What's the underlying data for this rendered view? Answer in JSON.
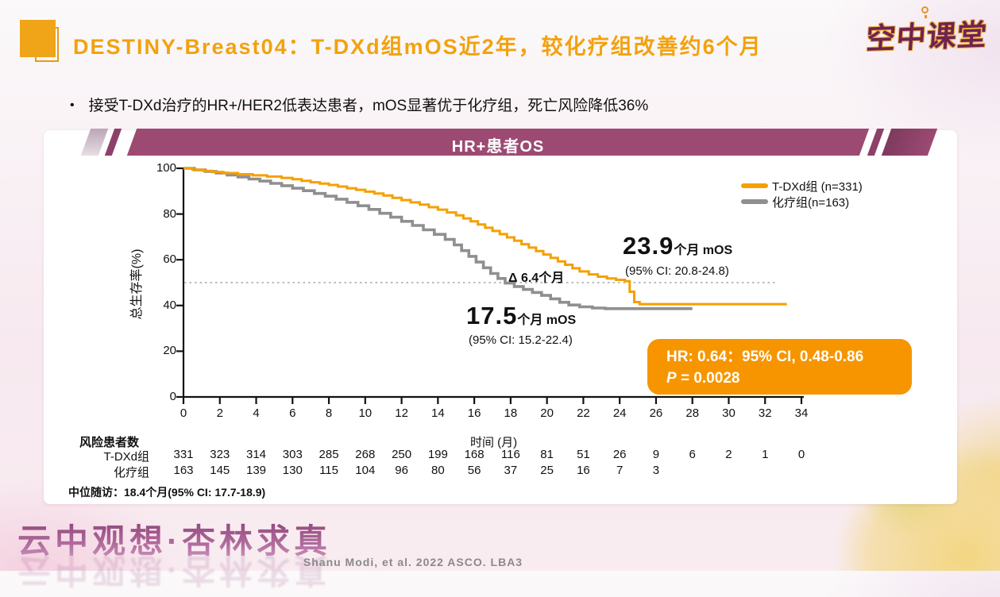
{
  "header": {
    "title": "DESTINY-Breast04：T-DXd组mOS近2年，较化疗组改善约6个月",
    "logo": "空中课堂"
  },
  "bullet": {
    "marker": "•",
    "text": "接受T-DXd治疗的HR+/HER2低表达患者，mOS显著优于化疗组，死亡风险降低36%"
  },
  "banner": {
    "title": "HR+患者OS"
  },
  "chart_data": {
    "type": "line",
    "subtype": "kaplan-meier-step",
    "title": "HR+患者OS",
    "xlabel": "时间 (月)",
    "ylabel": "总生存率(%)",
    "xlim": [
      0,
      34
    ],
    "ylim": [
      0,
      100
    ],
    "x_ticks": [
      0,
      2,
      4,
      6,
      8,
      10,
      12,
      14,
      16,
      18,
      20,
      22,
      24,
      26,
      28,
      30,
      32,
      34
    ],
    "y_ticks": [
      0,
      20,
      40,
      60,
      80,
      100
    ],
    "median_reference_line_y": 50,
    "grid": false,
    "legend_position": "top-right",
    "series": [
      {
        "name": "T-DXd组 (n=331)",
        "color": "#F5A000",
        "median_os": "23.9",
        "ci": "95% CI: 20.8-24.8",
        "points": [
          [
            0,
            100
          ],
          [
            0.5,
            99.4
          ],
          [
            1.1,
            98.9
          ],
          [
            1.6,
            98.4
          ],
          [
            2.2,
            97.9
          ],
          [
            3,
            97.4
          ],
          [
            3.8,
            96.9
          ],
          [
            4.6,
            96.4
          ],
          [
            5.4,
            95.8
          ],
          [
            6,
            95.2
          ],
          [
            6.5,
            94.5
          ],
          [
            7,
            93.9
          ],
          [
            7.5,
            93.3
          ],
          [
            8,
            92.7
          ],
          [
            8.5,
            92
          ],
          [
            9,
            91.3
          ],
          [
            9.5,
            90.6
          ],
          [
            10,
            89.8
          ],
          [
            10.5,
            89
          ],
          [
            11,
            88.1
          ],
          [
            11.5,
            87.1
          ],
          [
            12,
            86.1
          ],
          [
            12.5,
            85.1
          ],
          [
            13,
            84.1
          ],
          [
            13.5,
            83
          ],
          [
            14,
            81.9
          ],
          [
            14.5,
            80.7
          ],
          [
            15,
            79.4
          ],
          [
            15.4,
            78.1
          ],
          [
            15.8,
            76.8
          ],
          [
            16.2,
            75.4
          ],
          [
            16.6,
            74
          ],
          [
            17,
            72.6
          ],
          [
            17.4,
            71.2
          ],
          [
            17.8,
            69.8
          ],
          [
            18.2,
            68.3
          ],
          [
            18.6,
            66.8
          ],
          [
            19,
            65.3
          ],
          [
            19.4,
            63.8
          ],
          [
            19.8,
            62.3
          ],
          [
            20.2,
            60.8
          ],
          [
            20.6,
            59.3
          ],
          [
            21,
            57.8
          ],
          [
            21.4,
            56.3
          ],
          [
            21.8,
            54.9
          ],
          [
            22.3,
            53.6
          ],
          [
            22.8,
            52.6
          ],
          [
            23.3,
            51.8
          ],
          [
            23.8,
            51.2
          ],
          [
            24.3,
            50.6
          ],
          [
            24.55,
            46
          ],
          [
            24.8,
            41.5
          ],
          [
            25.1,
            40.6
          ],
          [
            33.2,
            40.6
          ]
        ]
      },
      {
        "name": "化疗组(n=163)",
        "color": "#8F8F8F",
        "median_os": "17.5",
        "ci": "95% CI: 15.2-22.4",
        "points": [
          [
            0,
            100
          ],
          [
            0.6,
            99.3
          ],
          [
            1.2,
            98.6
          ],
          [
            1.8,
            97.9
          ],
          [
            2.4,
            97.1
          ],
          [
            3,
            96.2
          ],
          [
            3.6,
            95.3
          ],
          [
            4.2,
            94.4
          ],
          [
            4.8,
            93.4
          ],
          [
            5.4,
            92.4
          ],
          [
            6,
            91.3
          ],
          [
            6.6,
            90.2
          ],
          [
            7.2,
            89
          ],
          [
            7.8,
            87.8
          ],
          [
            8.4,
            86.5
          ],
          [
            9,
            85.1
          ],
          [
            9.6,
            83.6
          ],
          [
            10.2,
            82
          ],
          [
            10.8,
            80.3
          ],
          [
            11.4,
            78.6
          ],
          [
            12,
            76.8
          ],
          [
            12.6,
            75
          ],
          [
            13.2,
            73.1
          ],
          [
            13.8,
            71.1
          ],
          [
            14.4,
            68.9
          ],
          [
            14.9,
            66.5
          ],
          [
            15.3,
            64
          ],
          [
            15.7,
            61.5
          ],
          [
            16.1,
            59
          ],
          [
            16.5,
            56.5
          ],
          [
            16.9,
            54
          ],
          [
            17.3,
            51.8
          ],
          [
            17.7,
            49.8
          ],
          [
            18.2,
            48.3
          ],
          [
            18.7,
            47
          ],
          [
            19.2,
            45.7
          ],
          [
            19.7,
            44.4
          ],
          [
            20.2,
            42.9
          ],
          [
            20.7,
            41.4
          ],
          [
            21.2,
            40.2
          ],
          [
            21.8,
            39.4
          ],
          [
            22.5,
            38.9
          ],
          [
            23.2,
            38.6
          ],
          [
            28,
            38.6
          ]
        ]
      }
    ],
    "risk_table": {
      "header": "风险患者数",
      "rows": [
        {
          "label": "T-DXd组",
          "values": [
            331,
            323,
            314,
            303,
            285,
            268,
            250,
            199,
            168,
            116,
            81,
            51,
            26,
            9,
            6,
            2,
            1,
            0
          ]
        },
        {
          "label": "化疗组",
          "values": [
            163,
            145,
            139,
            130,
            115,
            104,
            96,
            80,
            56,
            37,
            25,
            16,
            7,
            3
          ]
        }
      ]
    }
  },
  "legend": {
    "items": [
      {
        "label": "T-DXd组 (n=331)",
        "color": "#F5A000"
      },
      {
        "label": "化疗组(n=163)",
        "color": "#8F8F8F"
      }
    ]
  },
  "annotations": {
    "tdxd_value": "23.9",
    "tdxd_unit": "个月 mOS",
    "tdxd_ci": "(95% CI: 20.8-24.8)",
    "delta": "Δ 6.4个月",
    "chemo_value": "17.5",
    "chemo_unit": "个月 mOS",
    "chemo_ci": "(95% CI: 15.2-22.4)",
    "stat_line1": "HR: 0.64：95% CI, 0.48-0.86",
    "stat_p_label": "P",
    "stat_p_value": " = 0.0028"
  },
  "footer": {
    "median_followup": "中位随访：18.4个月(95% CI: 17.7-18.9)",
    "watermark": "云中观想·杏林求真",
    "citation": "Shanu Modi, et al. 2022 ASCO. LBA3"
  },
  "colors": {
    "title_orange": "#F2A20D",
    "banner_maroon": "#9C4A72",
    "statbox_orange": "#F79500",
    "curve_orange": "#F5A000",
    "curve_gray": "#8F8F8F",
    "logo_maroon": "#6E2350"
  }
}
